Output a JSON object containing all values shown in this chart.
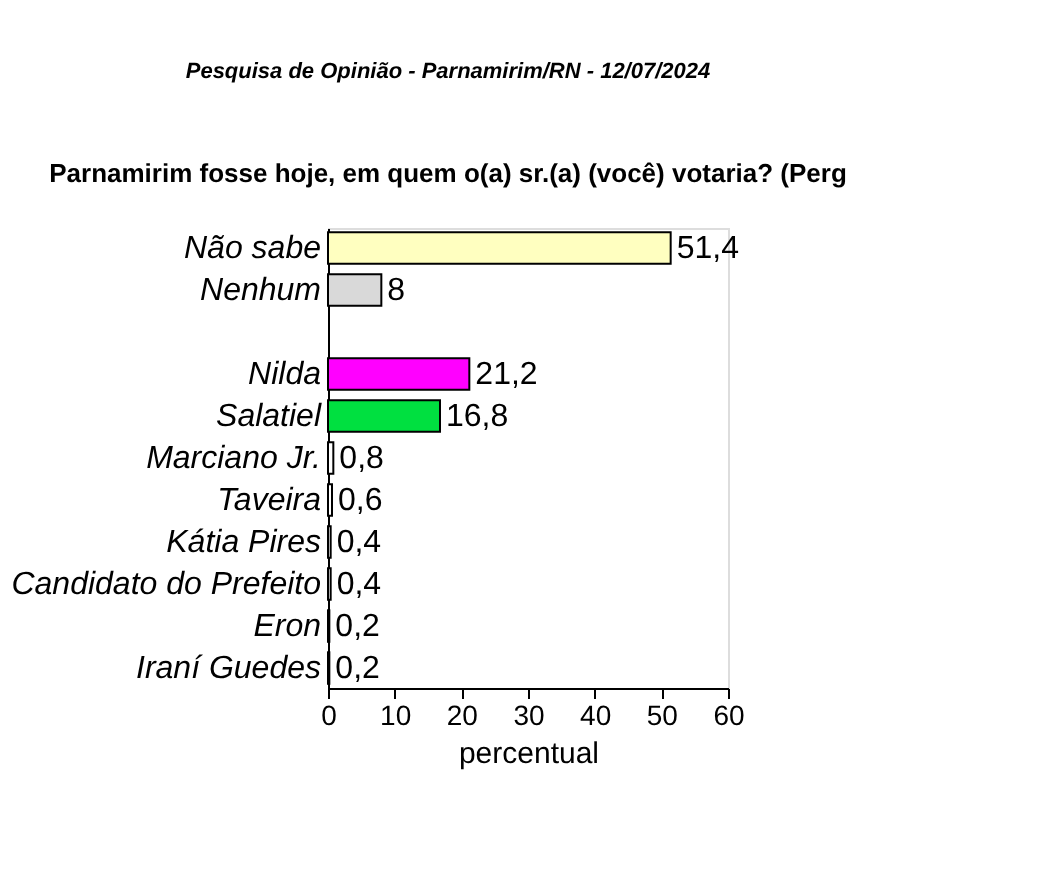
{
  "chart_data": {
    "type": "bar",
    "orientation": "horizontal",
    "title": "Pesquisa de Opinião  -  Parnamirim/RN  -  12/07/2024",
    "subtitle": "Parnamirim fosse hoje, em quem o(a) sr.(a) (você) votaria?   (Perg",
    "categories": [
      "Não sabe",
      "Nenhum",
      null,
      "Nilda",
      "Salatiel",
      "Marciano Jr.",
      "Taveira",
      "Kátia Pires",
      "Candidato do Prefeito",
      "Eron",
      "Iraní Guedes"
    ],
    "values": [
      51.4,
      8,
      null,
      21.2,
      16.8,
      0.8,
      0.6,
      0.4,
      0.4,
      0.2,
      0.2
    ],
    "colors": [
      "#ffffc0",
      "#d9d9d9",
      "#ffffff",
      "#ff00ff",
      "#00e040",
      "#ffffff",
      "#ffffff",
      "#ffffff",
      "#ffffff",
      "#ffffff",
      "#ffffff"
    ],
    "value_labels": [
      "51,4",
      "8",
      null,
      "21,2",
      "16,8",
      "0,8",
      "0,6",
      "0,4",
      "0,4",
      "0,2",
      "0,2"
    ],
    "xlabel": "percentual",
    "xlim": [
      0,
      60
    ],
    "xticks": [
      0,
      10,
      20,
      30,
      40,
      50,
      60
    ],
    "grid": false,
    "legend": false
  }
}
